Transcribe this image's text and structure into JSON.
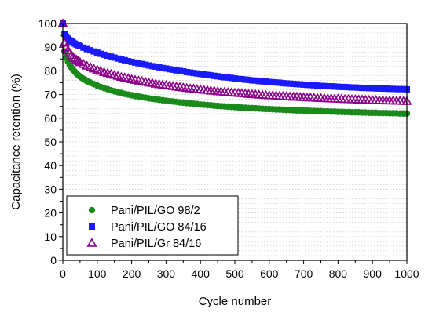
{
  "chart_data": {
    "type": "scatter",
    "xlabel": "Cycle number",
    "ylabel": "Capacitance retention (%)",
    "xlim": [
      0,
      1000
    ],
    "ylim": [
      0,
      100
    ],
    "xticks": [
      "0",
      "100",
      "200",
      "300",
      "400",
      "500",
      "600",
      "700",
      "800",
      "900",
      "1000"
    ],
    "yticks": [
      "0",
      "10",
      "20",
      "30",
      "40",
      "50",
      "60",
      "70",
      "80",
      "90",
      "100"
    ],
    "grid": "horizontal dotted minor lines",
    "legend_position": "lower-left",
    "series": [
      {
        "name": "Pani/PIL/GO 98/2",
        "marker": "circle",
        "color": "#1a8a1a",
        "x": [
          0,
          5,
          10,
          15,
          20,
          25,
          30,
          35,
          40,
          45,
          50,
          55,
          60,
          65,
          70,
          75,
          80,
          90,
          100,
          110,
          120,
          130,
          140,
          150,
          160,
          170,
          180,
          190,
          200,
          210,
          220,
          230,
          240,
          250,
          260,
          270,
          280,
          290,
          300,
          310,
          320,
          330,
          340,
          350,
          360,
          370,
          380,
          390,
          400,
          410,
          420,
          430,
          440,
          450,
          460,
          470,
          480,
          490,
          500,
          510,
          520,
          530,
          540,
          550,
          560,
          570,
          580,
          590,
          600,
          610,
          620,
          630,
          640,
          650,
          660,
          670,
          680,
          690,
          700,
          710,
          720,
          730,
          740,
          750,
          760,
          770,
          780,
          790,
          800,
          810,
          820,
          830,
          840,
          850,
          860,
          870,
          880,
          890,
          900,
          910,
          920,
          930,
          940,
          950,
          960,
          970,
          980,
          990,
          1000
        ],
        "y": [
          100,
          88.2,
          85.6,
          83.9,
          82.5,
          81.4,
          80.4,
          79.6,
          78.9,
          78.2,
          77.6,
          77.1,
          76.6,
          76.2,
          75.7,
          75.4,
          75.0,
          74.4,
          73.8,
          73.2,
          72.7,
          72.3,
          71.8,
          71.4,
          71.0,
          70.7,
          70.3,
          70.0,
          69.7,
          69.4,
          69.2,
          68.9,
          68.7,
          68.4,
          68.2,
          68.0,
          67.8,
          67.6,
          67.4,
          67.2,
          67.1,
          66.9,
          66.7,
          66.6,
          66.4,
          66.3,
          66.1,
          66.0,
          65.8,
          65.7,
          65.6,
          65.5,
          65.3,
          65.2,
          65.1,
          65.0,
          64.9,
          64.8,
          64.7,
          64.6,
          64.5,
          64.4,
          64.3,
          64.3,
          64.2,
          64.1,
          64.0,
          63.9,
          63.9,
          63.8,
          63.7,
          63.7,
          63.6,
          63.5,
          63.5,
          63.4,
          63.3,
          63.3,
          63.2,
          63.2,
          63.1,
          63.1,
          63.0,
          63.0,
          62.9,
          62.9,
          62.8,
          62.8,
          62.7,
          62.7,
          62.6,
          62.6,
          62.5,
          62.5,
          62.5,
          62.4,
          62.4,
          62.3,
          62.3,
          62.3,
          62.2,
          62.2,
          62.2,
          62.1,
          62.1,
          62.1,
          62.0,
          62.0,
          62.0
        ]
      },
      {
        "name": "Pani/PIL/GO 84/16",
        "marker": "square",
        "color": "#1a1aff",
        "x": [
          0,
          5,
          10,
          15,
          20,
          25,
          30,
          35,
          40,
          45,
          50,
          60,
          70,
          80,
          90,
          100,
          110,
          120,
          130,
          140,
          150,
          160,
          170,
          180,
          190,
          200,
          210,
          220,
          230,
          240,
          250,
          260,
          270,
          280,
          290,
          300,
          310,
          320,
          330,
          340,
          350,
          360,
          370,
          380,
          390,
          400,
          410,
          420,
          430,
          440,
          450,
          460,
          470,
          480,
          490,
          500,
          510,
          520,
          530,
          540,
          550,
          560,
          570,
          580,
          590,
          600,
          610,
          620,
          630,
          640,
          650,
          660,
          670,
          680,
          690,
          700,
          710,
          720,
          730,
          740,
          750,
          760,
          770,
          780,
          790,
          800,
          810,
          820,
          830,
          840,
          850,
          860,
          870,
          880,
          890,
          900,
          910,
          920,
          930,
          940,
          950,
          960,
          970,
          980,
          990,
          1000
        ],
        "y": [
          100,
          95.6,
          94.4,
          93.6,
          92.9,
          92.4,
          91.9,
          91.5,
          91.1,
          90.8,
          90.4,
          89.8,
          89.2,
          88.7,
          88.2,
          87.7,
          87.2,
          86.8,
          86.4,
          86.0,
          85.6,
          85.2,
          84.8,
          84.5,
          84.1,
          83.8,
          83.5,
          83.2,
          82.9,
          82.6,
          82.3,
          82.0,
          81.8,
          81.5,
          81.2,
          81.0,
          80.7,
          80.5,
          80.2,
          80.0,
          79.8,
          79.5,
          79.3,
          79.1,
          78.9,
          78.7,
          78.5,
          78.3,
          78.1,
          77.9,
          77.7,
          77.5,
          77.3,
          77.2,
          77.0,
          76.8,
          76.6,
          76.5,
          76.3,
          76.2,
          76.0,
          75.9,
          75.7,
          75.6,
          75.5,
          75.3,
          75.2,
          75.1,
          75.0,
          74.8,
          74.7,
          74.6,
          74.5,
          74.4,
          74.3,
          74.2,
          74.1,
          74.0,
          73.9,
          73.8,
          73.7,
          73.6,
          73.5,
          73.5,
          73.4,
          73.3,
          73.2,
          73.2,
          73.1,
          73.0,
          73.0,
          72.9,
          72.8,
          72.8,
          72.7,
          72.7,
          72.6,
          72.6,
          72.5,
          72.5,
          72.4,
          72.4,
          72.3,
          72.3,
          72.3,
          72.2
        ]
      },
      {
        "name": "Pani/PIL/Gr 84/16",
        "marker": "triangle-open",
        "color": "#8b008b",
        "x": [
          0,
          5,
          10,
          15,
          20,
          25,
          30,
          35,
          40,
          45,
          50,
          60,
          70,
          80,
          90,
          100,
          110,
          120,
          130,
          140,
          150,
          160,
          170,
          180,
          190,
          200,
          210,
          220,
          230,
          240,
          250,
          260,
          270,
          280,
          290,
          300,
          310,
          320,
          330,
          340,
          350,
          360,
          370,
          380,
          390,
          400,
          410,
          420,
          430,
          440,
          450,
          460,
          470,
          480,
          490,
          500,
          510,
          520,
          530,
          540,
          550,
          560,
          570,
          580,
          590,
          600,
          610,
          620,
          630,
          640,
          650,
          660,
          670,
          680,
          690,
          700,
          710,
          720,
          730,
          740,
          750,
          760,
          770,
          780,
          790,
          800,
          810,
          820,
          830,
          840,
          850,
          860,
          870,
          880,
          890,
          900,
          910,
          920,
          930,
          940,
          950,
          960,
          970,
          980,
          990,
          1000
        ],
        "y": [
          100,
          91.8,
          89.9,
          88.6,
          87.5,
          86.6,
          85.8,
          85.2,
          84.6,
          84.1,
          83.6,
          82.8,
          82.1,
          81.5,
          80.9,
          80.4,
          79.9,
          79.4,
          79.0,
          78.6,
          78.2,
          77.8,
          77.4,
          77.1,
          76.8,
          76.4,
          76.1,
          75.8,
          75.6,
          75.3,
          75.0,
          74.8,
          74.5,
          74.3,
          74.1,
          73.9,
          73.7,
          73.5,
          73.3,
          73.1,
          72.9,
          72.7,
          72.5,
          72.4,
          72.2,
          72.1,
          71.9,
          71.8,
          71.6,
          71.5,
          71.3,
          71.2,
          71.1,
          70.9,
          70.8,
          70.7,
          70.6,
          70.5,
          70.4,
          70.2,
          70.1,
          70.0,
          69.9,
          69.8,
          69.7,
          69.6,
          69.6,
          69.5,
          69.4,
          69.3,
          69.2,
          69.1,
          69.0,
          69.0,
          68.9,
          68.8,
          68.7,
          68.7,
          68.6,
          68.5,
          68.5,
          68.4,
          68.3,
          68.3,
          68.2,
          68.2,
          68.1,
          68.0,
          68.0,
          67.9,
          67.9,
          67.8,
          67.8,
          67.7,
          67.7,
          67.6,
          67.6,
          67.5,
          67.5,
          67.4,
          67.4,
          67.4,
          67.3,
          67.3,
          67.2,
          67.2
        ]
      }
    ]
  }
}
